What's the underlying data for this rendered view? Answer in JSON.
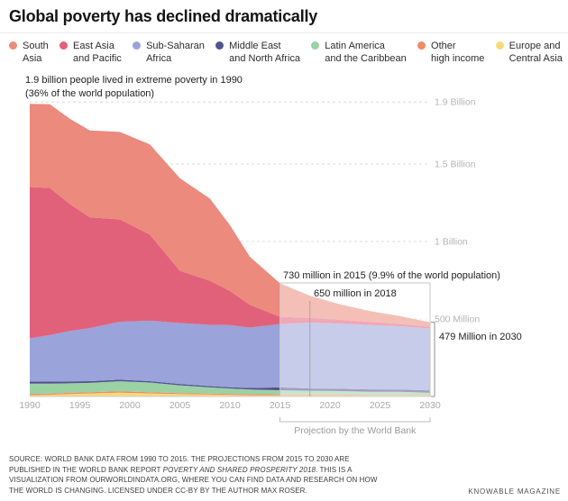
{
  "header": {
    "title": "Global poverty has declined dramatically"
  },
  "annotations": {
    "note_1990_line1": "1.9 billion people lived in extreme poverty in 1990",
    "note_1990_line2": "(36% of the world population)",
    "note_730": "730 million in 2015 (9.9% of the world population)",
    "note_650": "650 million in 2018",
    "note_479": "479 Million in 2030"
  },
  "chart_data": {
    "type": "area",
    "stacked": true,
    "title": "Global poverty has declined dramatically",
    "unit": "millions of people living in extreme poverty",
    "x": [
      1990,
      1992,
      1994,
      1996,
      1999,
      2002,
      2005,
      2008,
      2010,
      2012,
      2015,
      2018,
      2021,
      2024,
      2027,
      2030
    ],
    "x_ticks": [
      1990,
      1995,
      2000,
      2005,
      2010,
      2015,
      2020,
      2025,
      2030
    ],
    "gridlines": [
      {
        "value": 1900,
        "label": "1.9 Billion"
      },
      {
        "value": 1500,
        "label": "1.5 Billion"
      },
      {
        "value": 1000,
        "label": "1 Billion"
      },
      {
        "value": 500,
        "label": "500 Million"
      }
    ],
    "ylim_millions": [
      0,
      2000
    ],
    "series": [
      {
        "id": "europe-central-asia",
        "name": "Europe and Central Asia",
        "label_lines": [
          "Europe and",
          "Central Asia"
        ],
        "color": "#f8d977",
        "values": [
          9,
          11,
          16,
          20,
          25,
          20,
          15,
          12,
          10,
          8,
          7,
          6,
          6,
          5,
          5,
          5
        ]
      },
      {
        "id": "other-high-income",
        "name": "Other high income",
        "label_lines": [
          "Other",
          "high income"
        ],
        "color": "#f08c63",
        "values": [
          8,
          8,
          8,
          8,
          8,
          8,
          7,
          7,
          7,
          7,
          7,
          6,
          6,
          5,
          5,
          4
        ]
      },
      {
        "id": "latin-america-caribbean",
        "name": "Latin America and the Caribbean",
        "label_lines": [
          "Latin America",
          "and the Caribbean"
        ],
        "color": "#9ad2a4",
        "values": [
          66,
          64,
          61,
          60,
          65,
          62,
          50,
          40,
          35,
          30,
          26,
          25,
          23,
          21,
          20,
          15
        ]
      },
      {
        "id": "middle-east-north-africa",
        "name": "Middle East and North Africa",
        "label_lines": [
          "Middle East",
          "and North Africa"
        ],
        "color": "#55538f",
        "values": [
          14,
          13,
          12,
          11,
          10,
          9,
          9,
          8,
          8,
          10,
          19,
          15,
          15,
          15,
          15,
          15
        ]
      },
      {
        "id": "sub-saharan-africa",
        "name": "Sub-Saharan Africa",
        "label_lines": [
          "Sub-Saharan",
          "Africa"
        ],
        "color": "#9aa3da",
        "values": [
          278,
          300,
          325,
          342,
          374,
          390,
          393,
          395,
          400,
          390,
          408,
          425,
          420,
          415,
          408,
          400
        ]
      },
      {
        "id": "east-asia-pacific",
        "name": "East Asia and Pacific",
        "label_lines": [
          "East Asia",
          "and Pacific"
        ],
        "color": "#e2617a",
        "values": [
          977,
          950,
          820,
          715,
          661,
          555,
          337,
          285,
          221,
          147,
          47,
          30,
          25,
          20,
          15,
          10
        ]
      },
      {
        "id": "south-asia",
        "name": "South Asia",
        "label_lines": [
          "South",
          "Asia"
        ],
        "color": "#eb8a7d",
        "values": [
          536,
          540,
          550,
          560,
          564,
          583,
          598,
          530,
          425,
          309,
          216,
          143,
          100,
          70,
          50,
          30
        ]
      }
    ],
    "legend_order_top_to_bottom": [
      "South Asia",
      "East Asia and Pacific",
      "Sub-Saharan Africa",
      "Middle East and North Africa",
      "Latin America and the Caribbean",
      "Other high income",
      "Europe and Central Asia"
    ],
    "projection": {
      "start_year": 2015,
      "end_year": 2030,
      "label": "Projection by the World Bank"
    },
    "callouts": {
      "y2015": {
        "year": 2015,
        "value": 730
      },
      "y2018": {
        "year": 2018,
        "value": 650
      },
      "y2030": {
        "year": 2030,
        "value": 479
      }
    }
  },
  "footer": {
    "source_prefix": "Source: World Bank data from 1990 to 2015. The projections from 2015 to 2030 are published in the World Bank report ",
    "source_italic": "Poverty and Shared Prosperity 2018",
    "source_suffix": ". This is a visualization from ourworldindata.org, where you can find data and research on how the world is changing. Licensed under CC-BY by the author Max Roser.",
    "credit": "KNOWABLE MAGAZINE"
  }
}
